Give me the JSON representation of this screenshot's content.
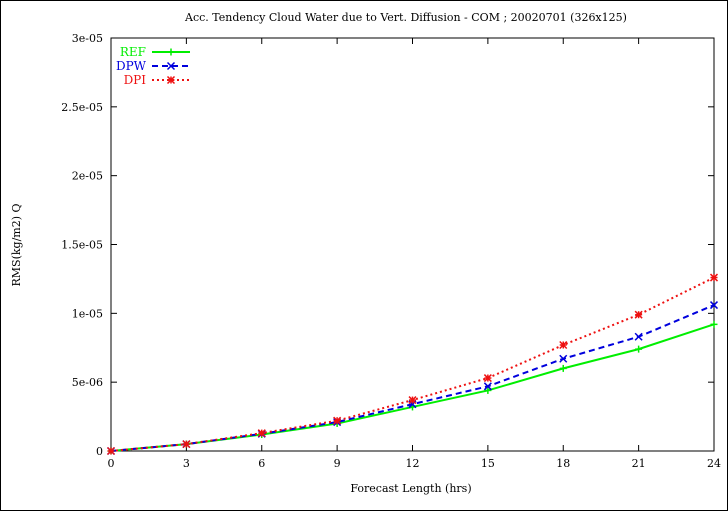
{
  "chart_data": {
    "type": "line",
    "title": "Acc. Tendency Cloud Water due to Vert. Diffusion - COM ; 20020701 (326x125)",
    "xlabel": "Forecast Length (hrs)",
    "ylabel": "RMS(kg/m2) Q",
    "x": [
      0,
      3,
      6,
      9,
      12,
      15,
      18,
      21,
      24
    ],
    "x_tick_labels": [
      "0",
      "3",
      "6",
      "9",
      "12",
      "15",
      "18",
      "21",
      "24"
    ],
    "y_tick_labels": [
      "0",
      "5e-06",
      "1e-05",
      "1.5e-05",
      "2e-05",
      "2.5e-05",
      "3e-05"
    ],
    "xlim": [
      0,
      24
    ],
    "ylim": [
      0,
      3e-05
    ],
    "grid": false,
    "legend_position": "top-left",
    "series": [
      {
        "name": "REF",
        "color": "#00ee00",
        "dash": "solid",
        "marker": "plus",
        "values": [
          0,
          5e-07,
          1.2e-06,
          2e-06,
          3.2e-06,
          4.4e-06,
          6e-06,
          7.4e-06,
          9.2e-06
        ]
      },
      {
        "name": "DPW",
        "color": "#0000dd",
        "dash": "dashed",
        "marker": "cross",
        "values": [
          0,
          5e-07,
          1.25e-06,
          2.1e-06,
          3.4e-06,
          4.7e-06,
          6.7e-06,
          8.3e-06,
          1.06e-05
        ]
      },
      {
        "name": "DPI",
        "color": "#ee1111",
        "dash": "dotted",
        "marker": "star",
        "values": [
          0,
          5e-07,
          1.3e-06,
          2.2e-06,
          3.7e-06,
          5.3e-06,
          7.7e-06,
          9.9e-06,
          1.26e-05
        ]
      }
    ]
  }
}
